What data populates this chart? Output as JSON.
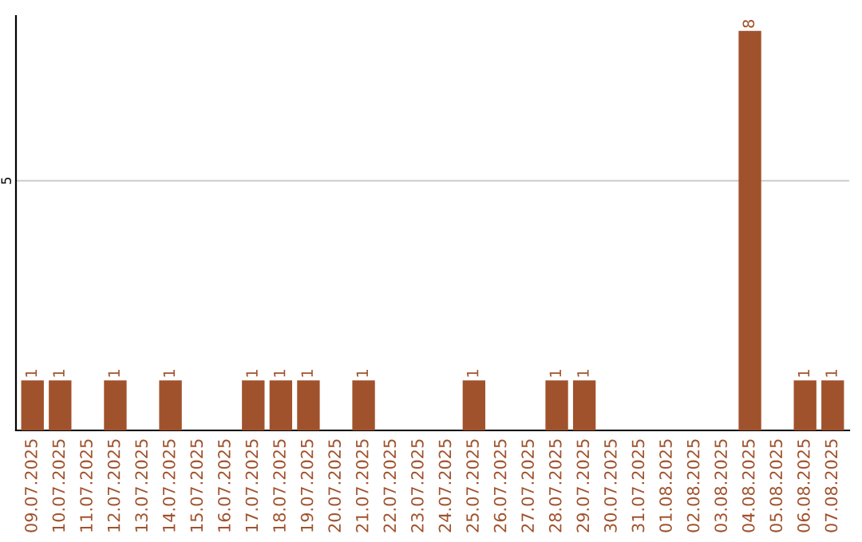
{
  "chart_data": {
    "type": "bar",
    "categories": [
      "09.07.2025",
      "10.07.2025",
      "11.07.2025",
      "12.07.2025",
      "13.07.2025",
      "14.07.2025",
      "15.07.2025",
      "16.07.2025",
      "17.07.2025",
      "18.07.2025",
      "19.07.2025",
      "20.07.2025",
      "21.07.2025",
      "22.07.2025",
      "23.07.2025",
      "24.07.2025",
      "25.07.2025",
      "26.07.2025",
      "27.07.2025",
      "28.07.2025",
      "29.07.2025",
      "30.07.2025",
      "31.07.2025",
      "01.08.2025",
      "02.08.2025",
      "03.08.2025",
      "04.08.2025",
      "05.08.2025",
      "06.08.2025",
      "07.08.2025"
    ],
    "values": [
      1,
      1,
      0,
      1,
      0,
      1,
      0,
      0,
      1,
      1,
      1,
      0,
      1,
      0,
      0,
      0,
      1,
      0,
      0,
      1,
      1,
      0,
      0,
      0,
      0,
      0,
      8,
      0,
      1,
      1
    ],
    "value_labels": [
      "1",
      "1",
      null,
      "1",
      null,
      "1",
      null,
      null,
      "1",
      "1",
      "1",
      null,
      "1",
      null,
      null,
      null,
      "1",
      null,
      null,
      "1",
      "1",
      null,
      null,
      null,
      null,
      null,
      "8",
      null,
      "1",
      "1"
    ],
    "color": "#a0522d",
    "ylim": [
      0,
      8.3
    ],
    "yticks": [
      5
    ],
    "grid": "y",
    "legend": false
  }
}
